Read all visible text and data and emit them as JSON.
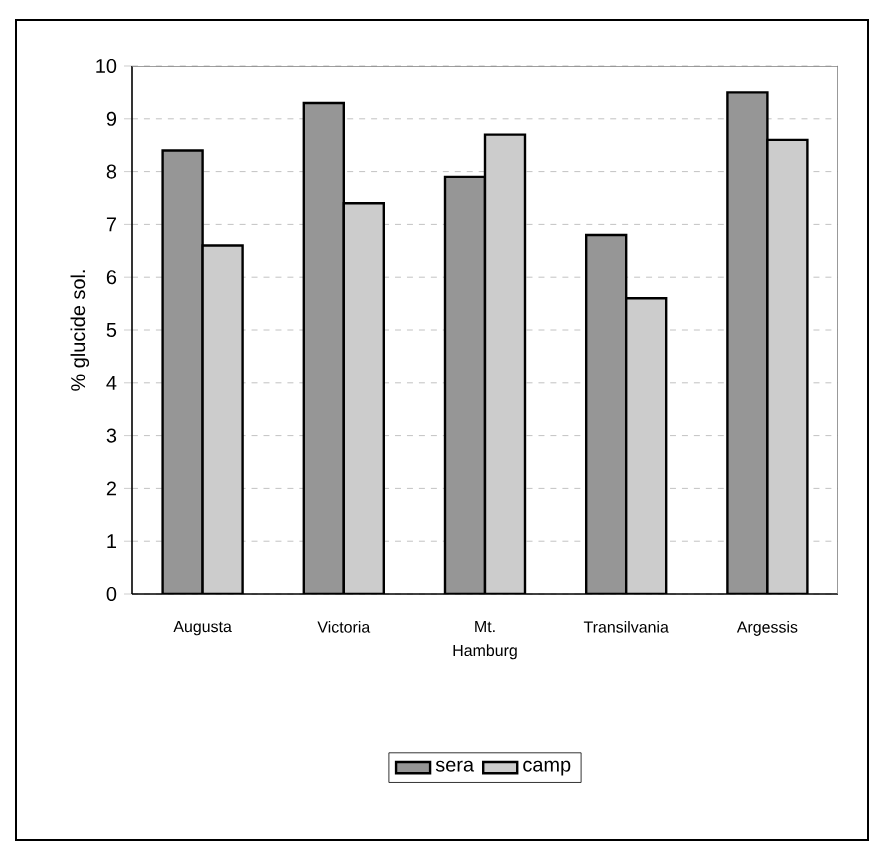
{
  "chart_data": {
    "type": "bar",
    "ylabel": "% glucide sol.",
    "categories": [
      "Augusta",
      "Victoria",
      "Mt. Hamburg",
      "Transilvania",
      "Argessis"
    ],
    "series": [
      {
        "name": "sera",
        "color": "#969696",
        "values": [
          8.4,
          9.3,
          7.9,
          6.8,
          9.5
        ]
      },
      {
        "name": "camp",
        "color": "#cccccc",
        "values": [
          6.6,
          7.4,
          8.7,
          5.6,
          8.6
        ]
      }
    ],
    "ylim": [
      0,
      10
    ],
    "yticks": [
      0,
      1,
      2,
      3,
      4,
      5,
      6,
      7,
      8,
      9,
      10
    ],
    "grid": "y",
    "legend": "bottom"
  }
}
